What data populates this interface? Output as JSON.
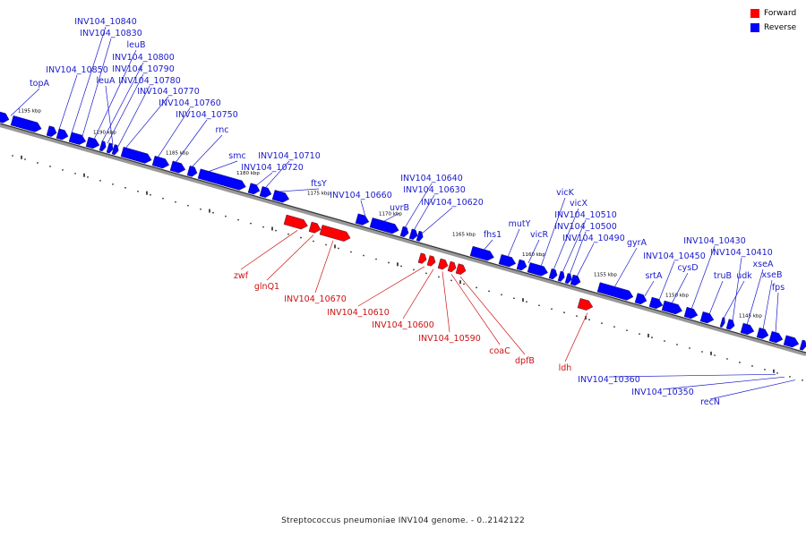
{
  "caption": "Streptococcus pneumoniae INV104 genome. - 0..2142122",
  "legend": {
    "forward_label": "Forward",
    "reverse_label": "Reverse",
    "forward_color": "#ff0000",
    "reverse_color": "#0000ff"
  },
  "ticks": [
    "1195 kbp",
    "1190 kbp",
    "1185 kbp",
    "1180 kbp",
    "1175 kbp",
    "1170 kbp",
    "1165 kbp",
    "1160 kbp",
    "1155 kbp",
    "1150 kbp",
    "1145 kbp"
  ],
  "reverse_genes": [
    "topA",
    "INV104_10850",
    "INV104_10840",
    "INV104_10830",
    "leuB",
    "INV104_10800",
    "INV104_10790",
    "leuA",
    "INV104_10780",
    "INV104_10770",
    "INV104_10760",
    "INV104_10750",
    "rnc",
    "smc",
    "INV104_10720",
    "INV104_10710",
    "ftsY",
    "INV104_10660",
    "uvrB",
    "INV104_10640",
    "INV104_10630",
    "INV104_10620",
    "fhs1",
    "mutY",
    "vicR",
    "vicK",
    "vicX",
    "INV104_10510",
    "INV104_10500",
    "INV104_10490",
    "gyrA",
    "srtA",
    "INV104_10450",
    "cysD",
    "INV104_10430",
    "truB",
    "udk",
    "INV104_10410",
    "xseA",
    "xseB",
    "fps",
    "INV104_10360",
    "INV104_10350",
    "recN"
  ],
  "forward_genes": [
    "zwf",
    "glnQ1",
    "INV104_10670",
    "INV104_10610",
    "INV104_10600",
    "INV104_10590",
    "coaC",
    "dpfB",
    "ldh"
  ]
}
